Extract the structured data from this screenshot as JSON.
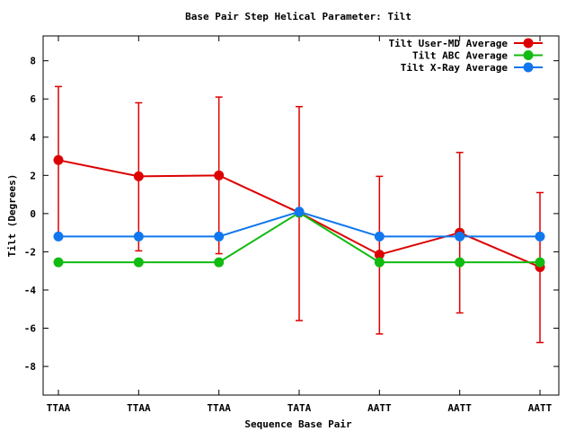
{
  "chart_data": {
    "type": "line",
    "title": "Base Pair Step Helical Parameter: Tilt",
    "xlabel": "Sequence Base Pair",
    "ylabel": "Tilt (Degrees)",
    "categories": [
      "TTAA",
      "TTAA",
      "TTAA",
      "TATA",
      "AATT",
      "AATT",
      "AATT"
    ],
    "ylim": [
      -9.5,
      9.3
    ],
    "yticks": [
      -8,
      -6,
      -4,
      -2,
      0,
      2,
      4,
      6,
      8
    ],
    "grid": false,
    "legend_position": "top-right",
    "series": [
      {
        "name": "Tilt User-MD Average",
        "color": "#dd0000",
        "values": [
          2.8,
          1.95,
          2.0,
          0.05,
          -2.15,
          -1.0,
          -2.8
        ],
        "error_low": [
          -1.1,
          -1.95,
          -2.1,
          -5.6,
          -6.3,
          -5.2,
          -6.75
        ],
        "error_high": [
          6.65,
          5.8,
          6.1,
          5.6,
          1.95,
          3.2,
          1.1
        ]
      },
      {
        "name": "Tilt ABC Average",
        "color": "#11bb11",
        "values": [
          -2.55,
          -2.55,
          -2.55,
          0.05,
          -2.55,
          -2.55,
          -2.55
        ]
      },
      {
        "name": "Tilt X-Ray Average",
        "color": "#1177ee",
        "values": [
          -1.2,
          -1.2,
          -1.2,
          0.1,
          -1.2,
          -1.2,
          -1.2
        ]
      }
    ]
  }
}
